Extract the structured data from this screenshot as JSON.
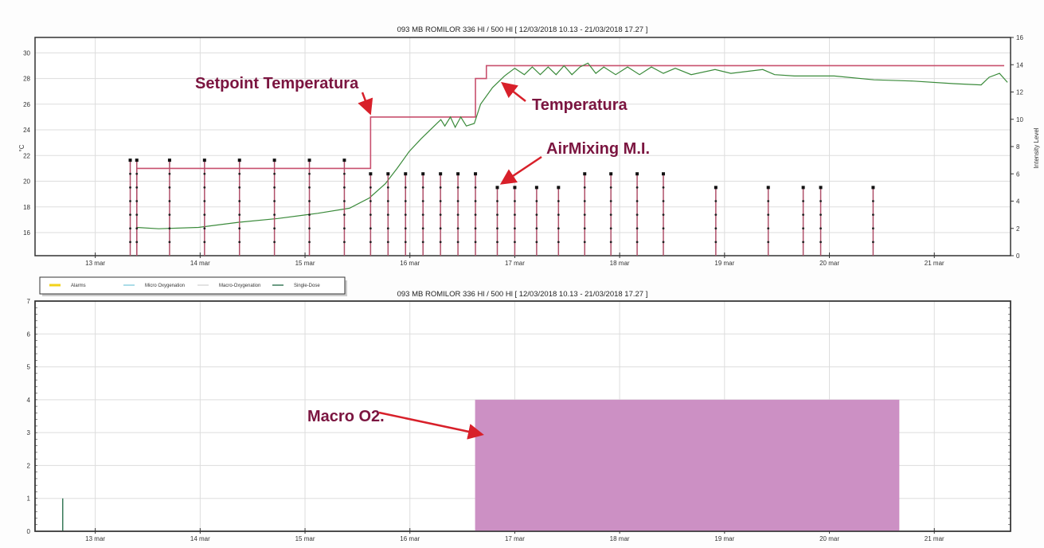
{
  "chart_data": [
    {
      "type": "line",
      "title": "093  MB ROMILOR 336 Hl / 500 Hl [ 12/03/2018 10.13 - 21/03/2018 17.27 ]",
      "xlabel": "",
      "ylabel": "°C",
      "ylabel_right": "Intensity Level",
      "xlim": [
        "2018-03-12T10:13",
        "2018-03-21T17:27"
      ],
      "ylim": [
        14.2,
        31.2
      ],
      "ylim_right": [
        0,
        16
      ],
      "grid": true,
      "x_ticks": [
        {
          "date": "2018-03-13",
          "label": "13 mar"
        },
        {
          "date": "2018-03-14",
          "label": "14 mar"
        },
        {
          "date": "2018-03-15",
          "label": "15 mar"
        },
        {
          "date": "2018-03-16",
          "label": "16 mar"
        },
        {
          "date": "2018-03-17",
          "label": "17 mar"
        },
        {
          "date": "2018-03-18",
          "label": "18 mar"
        },
        {
          "date": "2018-03-19",
          "label": "19 mar"
        },
        {
          "date": "2018-03-20",
          "label": "20 mar"
        },
        {
          "date": "2018-03-21",
          "label": "21 mar"
        }
      ],
      "y_ticks": [
        "16",
        "18",
        "20",
        "22",
        "24",
        "26",
        "28",
        "30"
      ],
      "y_ticks_right": [
        "0",
        "2",
        "4",
        "6",
        "8",
        "10",
        "12",
        "14",
        "16"
      ],
      "series": [
        {
          "name": "Setpoint Temperatura",
          "axis": "left",
          "color": "#c8506e",
          "style": "step",
          "points": [
            [
              "2018-03-13T09:30",
              21
            ],
            [
              "2018-03-15T15:00",
              25
            ],
            [
              "2018-03-16T15:00",
              28
            ],
            [
              "2018-03-16T17:30",
              29
            ],
            [
              "2018-03-21T16:00",
              29
            ]
          ]
        },
        {
          "name": "Temperatura",
          "axis": "left",
          "color": "#3a8a3a",
          "style": "line",
          "points": [
            [
              "2018-03-13T09:27",
              16.4
            ],
            [
              "2018-03-13T14:30",
              16.3
            ],
            [
              "2018-03-13T23:38",
              16.4
            ],
            [
              "2018-03-14T08:44",
              16.8
            ],
            [
              "2018-03-14T17:49",
              17.1
            ],
            [
              "2018-03-15T02:55",
              17.5
            ],
            [
              "2018-03-15T10:11",
              17.9
            ],
            [
              "2018-03-15T14:44",
              18.7
            ],
            [
              "2018-03-15T18:22",
              19.8
            ],
            [
              "2018-03-15T21:05",
              21.0
            ],
            [
              "2018-03-15T23:49",
              22.3
            ],
            [
              "2018-03-16T02:33",
              23.3
            ],
            [
              "2018-03-16T05:16",
              24.2
            ],
            [
              "2018-03-16T07:05",
              24.8
            ],
            [
              "2018-03-16T08:00",
              24.3
            ],
            [
              "2018-03-16T09:16",
              25.0
            ],
            [
              "2018-03-16T10:22",
              24.2
            ],
            [
              "2018-03-16T11:38",
              25.0
            ],
            [
              "2018-03-16T12:55",
              24.3
            ],
            [
              "2018-03-16T14:44",
              24.5
            ],
            [
              "2018-03-16T16:11",
              26.0
            ],
            [
              "2018-03-16T18:55",
              27.3
            ],
            [
              "2018-03-16T21:38",
              28.2
            ],
            [
              "2018-03-17T00:00",
              28.8
            ],
            [
              "2018-03-17T02:11",
              28.3
            ],
            [
              "2018-03-17T04:00",
              28.9
            ],
            [
              "2018-03-17T05:49",
              28.3
            ],
            [
              "2018-03-17T07:38",
              28.9
            ],
            [
              "2018-03-17T09:27",
              28.3
            ],
            [
              "2018-03-17T11:16",
              29.0
            ],
            [
              "2018-03-17T13:05",
              28.3
            ],
            [
              "2018-03-17T14:55",
              28.9
            ],
            [
              "2018-03-17T16:44",
              29.2
            ],
            [
              "2018-03-17T18:33",
              28.4
            ],
            [
              "2018-03-17T20:22",
              28.9
            ],
            [
              "2018-03-17T23:05",
              28.3
            ],
            [
              "2018-03-18T01:49",
              28.9
            ],
            [
              "2018-03-18T04:33",
              28.3
            ],
            [
              "2018-03-18T07:16",
              28.9
            ],
            [
              "2018-03-18T10:00",
              28.4
            ],
            [
              "2018-03-18T12:44",
              28.8
            ],
            [
              "2018-03-18T16:22",
              28.3
            ],
            [
              "2018-03-18T21:49",
              28.7
            ],
            [
              "2018-03-19T01:27",
              28.4
            ],
            [
              "2018-03-19T08:44",
              28.7
            ],
            [
              "2018-03-19T11:27",
              28.3
            ],
            [
              "2018-03-19T16:00",
              28.2
            ],
            [
              "2018-03-20T01:05",
              28.2
            ],
            [
              "2018-03-20T10:11",
              27.9
            ],
            [
              "2018-03-20T19:16",
              27.8
            ],
            [
              "2018-03-21T04:22",
              27.6
            ],
            [
              "2018-03-21T10:44",
              27.5
            ],
            [
              "2018-03-21T12:33",
              28.1
            ],
            [
              "2018-03-21T14:55",
              28.4
            ],
            [
              "2018-03-21T16:44",
              27.7
            ]
          ]
        },
        {
          "name": "AirMixing M.I.",
          "axis": "right",
          "color": "#b0506a",
          "style": "stem",
          "points": [
            [
              "2018-03-13T08:00",
              7
            ],
            [
              "2018-03-13T09:30",
              7
            ],
            [
              "2018-03-13T17:00",
              7
            ],
            [
              "2018-03-14T01:00",
              7
            ],
            [
              "2018-03-14T09:00",
              7
            ],
            [
              "2018-03-14T17:00",
              7
            ],
            [
              "2018-03-15T01:00",
              7
            ],
            [
              "2018-03-15T09:00",
              7
            ],
            [
              "2018-03-15T15:00",
              6
            ],
            [
              "2018-03-15T19:00",
              6
            ],
            [
              "2018-03-15T23:00",
              6
            ],
            [
              "2018-03-16T03:00",
              6
            ],
            [
              "2018-03-16T07:00",
              6
            ],
            [
              "2018-03-16T11:00",
              6
            ],
            [
              "2018-03-16T15:00",
              6
            ],
            [
              "2018-03-16T20:00",
              5
            ],
            [
              "2018-03-17T00:00",
              5
            ],
            [
              "2018-03-17T05:00",
              5
            ],
            [
              "2018-03-17T10:00",
              5
            ],
            [
              "2018-03-17T16:00",
              6
            ],
            [
              "2018-03-17T22:00",
              6
            ],
            [
              "2018-03-18T04:00",
              6
            ],
            [
              "2018-03-18T10:00",
              6
            ],
            [
              "2018-03-18T22:00",
              5
            ],
            [
              "2018-03-19T10:00",
              5
            ],
            [
              "2018-03-19T18:00",
              5
            ],
            [
              "2018-03-19T22:00",
              5
            ],
            [
              "2018-03-20T10:00",
              5
            ]
          ]
        }
      ],
      "annotations": [
        "Setpoint Temperatura",
        "Temperatura",
        "AirMixing M.I."
      ]
    },
    {
      "type": "area",
      "title": "093  MB ROMILOR 336 Hl / 500 Hl [ 12/03/2018 10.13 - 21/03/2018 17.27 ]",
      "xlim": [
        "2018-03-12T10:13",
        "2018-03-21T17:27"
      ],
      "ylim": [
        0,
        7
      ],
      "grid": true,
      "y_ticks": [
        "0",
        "1",
        "2",
        "3",
        "4",
        "5",
        "6",
        "7"
      ],
      "legend": {
        "placement": "top-left",
        "entries": [
          {
            "name": "Alarms",
            "color": "#f2d21a"
          },
          {
            "name": "Micro Oxygenation",
            "color": "#8fd0e0"
          },
          {
            "name": "Macro-Oxygenation",
            "color": "#d8d8d8"
          },
          {
            "name": "Single-Dose",
            "color": "#3a7a5a"
          }
        ]
      },
      "series": [
        {
          "name": "Macro-Oxygenation",
          "color": "#cc90c4",
          "start": "2018-03-16T14:55",
          "end": "2018-03-20T16:00",
          "value": 4
        },
        {
          "name": "Single-Dose",
          "color": "#3a7a5a",
          "date": "2018-03-12T16:33",
          "value": 1
        }
      ],
      "annotations": [
        "Macro O2."
      ]
    }
  ]
}
